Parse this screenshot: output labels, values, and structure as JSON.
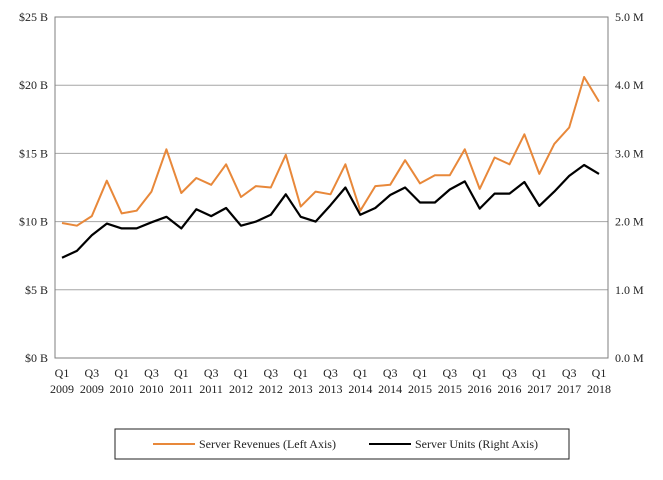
{
  "chart_data": {
    "type": "line",
    "categories": [
      {
        "q": "Q1",
        "y": "2009"
      },
      {
        "q": "",
        "y": ""
      },
      {
        "q": "Q3",
        "y": "2009"
      },
      {
        "q": "",
        "y": ""
      },
      {
        "q": "Q1",
        "y": "2010"
      },
      {
        "q": "",
        "y": ""
      },
      {
        "q": "Q3",
        "y": "2010"
      },
      {
        "q": "",
        "y": ""
      },
      {
        "q": "Q1",
        "y": "2011"
      },
      {
        "q": "",
        "y": ""
      },
      {
        "q": "Q3",
        "y": "2011"
      },
      {
        "q": "",
        "y": ""
      },
      {
        "q": "Q1",
        "y": "2012"
      },
      {
        "q": "",
        "y": ""
      },
      {
        "q": "Q3",
        "y": "2012"
      },
      {
        "q": "",
        "y": ""
      },
      {
        "q": "Q1",
        "y": "2013"
      },
      {
        "q": "",
        "y": ""
      },
      {
        "q": "Q3",
        "y": "2013"
      },
      {
        "q": "",
        "y": ""
      },
      {
        "q": "Q1",
        "y": "2014"
      },
      {
        "q": "",
        "y": ""
      },
      {
        "q": "Q3",
        "y": "2014"
      },
      {
        "q": "",
        "y": ""
      },
      {
        "q": "Q1",
        "y": "2015"
      },
      {
        "q": "",
        "y": ""
      },
      {
        "q": "Q3",
        "y": "2015"
      },
      {
        "q": "",
        "y": ""
      },
      {
        "q": "Q1",
        "y": "2016"
      },
      {
        "q": "",
        "y": ""
      },
      {
        "q": "Q3",
        "y": "2016"
      },
      {
        "q": "",
        "y": ""
      },
      {
        "q": "Q1",
        "y": "2017"
      },
      {
        "q": "",
        "y": ""
      },
      {
        "q": "Q3",
        "y": "2017"
      },
      {
        "q": "",
        "y": ""
      },
      {
        "q": "Q1",
        "y": "2018"
      }
    ],
    "series": [
      {
        "name": "Server Revenues (Left Axis)",
        "axis": "left",
        "color": "#e8883a",
        "values": [
          9.9,
          9.7,
          10.4,
          13.0,
          10.6,
          10.8,
          12.2,
          15.3,
          12.1,
          13.2,
          12.7,
          14.2,
          11.8,
          12.6,
          12.5,
          14.9,
          11.1,
          12.2,
          12.0,
          14.2,
          10.8,
          12.6,
          12.7,
          14.5,
          12.8,
          13.4,
          13.4,
          15.3,
          12.4,
          14.7,
          14.2,
          16.4,
          13.5,
          15.7,
          16.9,
          20.6,
          18.8
        ]
      },
      {
        "name": "Server Units (Right Axis)",
        "axis": "right",
        "color": "#000000",
        "values": [
          1.47,
          1.57,
          1.8,
          1.97,
          1.9,
          1.9,
          1.99,
          2.07,
          1.9,
          2.18,
          2.08,
          2.2,
          1.94,
          2.0,
          2.1,
          2.4,
          2.07,
          2.0,
          2.24,
          2.5,
          2.1,
          2.2,
          2.39,
          2.5,
          2.28,
          2.28,
          2.47,
          2.59,
          2.19,
          2.41,
          2.41,
          2.58,
          2.23,
          2.44,
          2.67,
          2.83,
          2.7
        ]
      }
    ],
    "left_axis": {
      "min": 0,
      "max": 25,
      "ticks": [
        0,
        5,
        10,
        15,
        20,
        25
      ],
      "tick_labels": [
        "$0 B",
        "$5 B",
        "$10 B",
        "$15 B",
        "$20 B",
        "$25 B"
      ]
    },
    "right_axis": {
      "min": 0,
      "max": 5,
      "ticks": [
        0,
        1,
        2,
        3,
        4,
        5
      ],
      "tick_labels": [
        "0.0 M",
        "1.0 M",
        "2.0 M",
        "3.0 M",
        "4.0 M",
        "5.0 M"
      ]
    },
    "title": "",
    "xlabel": "",
    "ylabel": "",
    "grid": true,
    "legend_position": "bottom"
  }
}
